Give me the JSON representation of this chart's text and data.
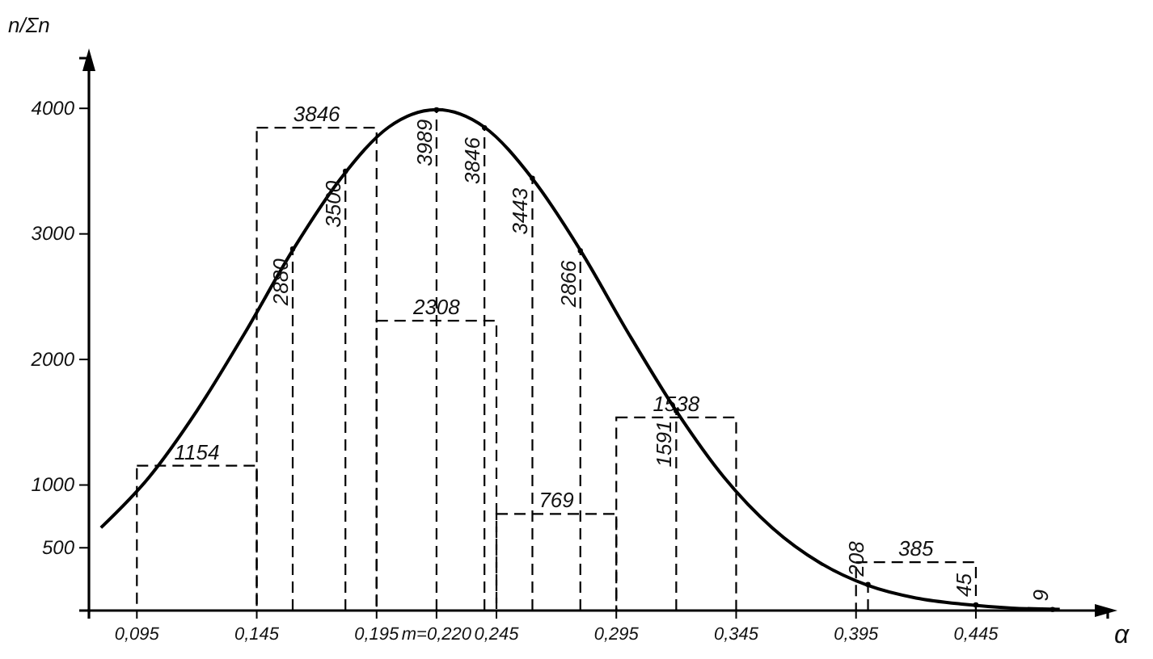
{
  "chart_data": {
    "type": "histogram",
    "xlabel": "α",
    "ylabel": "n/Σn",
    "bins": [
      0.095,
      0.145,
      0.195,
      0.245,
      0.295,
      0.345,
      0.395,
      0.445
    ],
    "values": [
      1154,
      3846,
      2308,
      769,
      1538,
      0,
      385
    ],
    "value_labels": [
      "1154",
      "3846",
      "2308",
      "769",
      "1538",
      null,
      "385"
    ],
    "color": "#000000",
    "line_style": "dashed",
    "series": [
      {
        "type": "line",
        "color": "#000000",
        "line_style": "solid",
        "x": [
          0.08,
          0.1,
          0.12,
          0.14,
          0.16,
          0.18,
          0.2,
          0.22,
          0.24,
          0.26,
          0.28,
          0.3,
          0.32,
          0.34,
          0.36,
          0.38,
          0.4,
          0.42,
          0.44,
          0.46,
          0.48
        ],
        "values": [
          660,
          1060,
          1590,
          2210,
          2870,
          3440,
          3850,
          3990,
          3850,
          3440,
          2870,
          2210,
          1590,
          1060,
          660,
          380,
          200,
          100,
          50,
          20,
          10
        ]
      },
      {
        "type": "lollipop",
        "color": "#000000",
        "line_style": "dashed",
        "marker": "circle",
        "x": [
          0.16,
          0.182,
          0.22,
          0.24,
          0.26,
          0.28,
          0.32,
          0.4,
          0.445,
          0.477
        ],
        "values": [
          2880,
          3500,
          3989,
          3846,
          3443,
          2866,
          1591,
          208,
          45,
          9
        ],
        "value_labels": [
          "2880",
          "3500",
          "3989",
          "3846",
          "3443",
          "2866",
          "1591",
          "208",
          "45",
          "9"
        ]
      }
    ],
    "xlim": [
      0.075,
      0.5
    ],
    "ylim": [
      0,
      4400
    ],
    "xticks": [
      {
        "value": 0.095,
        "label": "0,095"
      },
      {
        "value": 0.145,
        "label": "0,145"
      },
      {
        "value": 0.195,
        "label": "0,195"
      },
      {
        "value": 0.22,
        "label": "m=0,220"
      },
      {
        "value": 0.245,
        "label": "0,245"
      },
      {
        "value": 0.295,
        "label": "0,295"
      },
      {
        "value": 0.345,
        "label": "0,345"
      },
      {
        "value": 0.395,
        "label": "0,395"
      },
      {
        "value": 0.445,
        "label": "0,445"
      }
    ],
    "yticks": [
      500,
      1000,
      2000,
      3000,
      4000
    ]
  }
}
